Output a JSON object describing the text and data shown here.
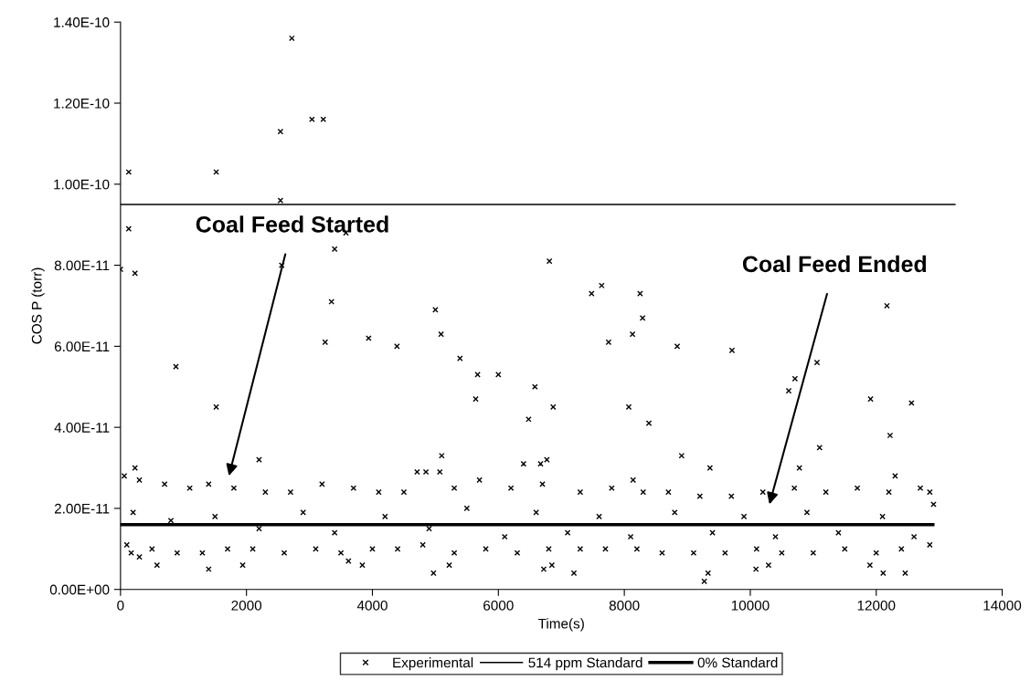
{
  "chart_data": {
    "type": "scatter",
    "xlabel": "Time(s)",
    "ylabel": "COS P (torr)",
    "xlim": [
      0,
      14000
    ],
    "xticks": [
      0,
      2000,
      4000,
      6000,
      8000,
      10000,
      12000,
      14000
    ],
    "ylim": [
      0,
      1.4e-10
    ],
    "yticks": [
      {
        "value": 0,
        "label": "0.00E+00"
      },
      {
        "value": 2e-11,
        "label": "2.00E-11"
      },
      {
        "value": 4e-11,
        "label": "4.00E-11"
      },
      {
        "value": 6e-11,
        "label": "6.00E-11"
      },
      {
        "value": 8e-11,
        "label": "8.00E-11"
      },
      {
        "value": 1e-10,
        "label": "1.00E-10"
      },
      {
        "value": 1.2e-10,
        "label": "1.20E-10"
      },
      {
        "value": 1.4e-10,
        "label": "1.40E-10"
      }
    ],
    "grid": false,
    "legend": "bottom",
    "annotations": [
      "Coal Feed Started",
      "Coal Feed Ended"
    ],
    "series": [
      {
        "name": "Experimental",
        "color": "#000000",
        "marker": "cross",
        "x": [
          2720,
          3040,
          3220,
          2540,
          130,
          1520,
          2540,
          130,
          3580,
          3400,
          2560,
          0,
          230,
          3350,
          5000,
          5090,
          3250,
          3940,
          4390,
          5390,
          5670,
          6000,
          880,
          5640,
          1520,
          6810,
          7480,
          7640,
          8250,
          8290,
          8130,
          7750,
          8840,
          9710,
          11060,
          10710,
          10610,
          12170,
          11910,
          12560,
          12220,
          6580,
          6870,
          6480,
          8070,
          8390,
          11100,
          8910,
          9360,
          10780,
          12300,
          6400,
          6670,
          6770,
          8140,
          2200,
          5100,
          5070,
          4710,
          4850,
          230,
          1400,
          4970,
          1940,
          5220,
          6720,
          580,
          300,
          170,
          3620,
          3840,
          9270,
          9330,
          12110,
          12460,
          10090,
          10290,
          7200,
          6850,
          11900,
          12850,
          12910,
          60,
          300,
          700,
          1100,
          1400,
          1800,
          2300,
          2700,
          3200,
          3700,
          4100,
          4500,
          5300,
          5700,
          6200,
          6700,
          7300,
          7800,
          8300,
          8700,
          9200,
          9700,
          10200,
          10700,
          11200,
          11700,
          12200,
          12700,
          100,
          500,
          900,
          1300,
          1700,
          2100,
          2600,
          3100,
          3500,
          4000,
          4400,
          4800,
          5300,
          5800,
          6300,
          6800,
          7300,
          7700,
          8200,
          8600,
          9100,
          9600,
          10100,
          10500,
          11000,
          11500,
          12000,
          12400,
          12850,
          200,
          800,
          1500,
          2200,
          2900,
          3400,
          4200,
          4900,
          5500,
          6100,
          6600,
          7100,
          7600,
          8100,
          8800,
          9400,
          9900,
          10400,
          10900,
          11400,
          12100,
          12600
        ],
        "values": [
          1.36e-10,
          1.16e-10,
          1.16e-10,
          1.13e-10,
          1.03e-10,
          1.03e-10,
          9.6e-11,
          8.9e-11,
          8.8e-11,
          8.4e-11,
          8e-11,
          7.9e-11,
          7.8e-11,
          7.1e-11,
          6.9e-11,
          6.3e-11,
          6.1e-11,
          6.2e-11,
          6e-11,
          5.7e-11,
          5.3e-11,
          5.3e-11,
          5.5e-11,
          4.7e-11,
          4.5e-11,
          8.1e-11,
          7.3e-11,
          7.5e-11,
          7.3e-11,
          6.7e-11,
          6.3e-11,
          6.1e-11,
          6e-11,
          5.9e-11,
          5.6e-11,
          5.2e-11,
          4.9e-11,
          7e-11,
          4.7e-11,
          4.6e-11,
          3.8e-11,
          5e-11,
          4.5e-11,
          4.2e-11,
          4.5e-11,
          4.1e-11,
          3.5e-11,
          3.3e-11,
          3e-11,
          3e-11,
          2.8e-11,
          3.1e-11,
          3.1e-11,
          3.2e-11,
          2.7e-11,
          3.2e-11,
          3.3e-11,
          2.9e-11,
          2.9e-11,
          2.9e-11,
          3e-11,
          5e-12,
          4e-12,
          6e-12,
          6e-12,
          5e-12,
          6e-12,
          8e-12,
          9e-12,
          7e-12,
          6e-12,
          2e-12,
          4e-12,
          4e-12,
          4e-12,
          5e-12,
          6e-12,
          4e-12,
          6e-12,
          6e-12,
          2.4e-11,
          2.1e-11,
          2.8e-11,
          2.7e-11,
          2.6e-11,
          2.5e-11,
          2.6e-11,
          2.5e-11,
          2.4e-11,
          2.4e-11,
          2.6e-11,
          2.5e-11,
          2.4e-11,
          2.4e-11,
          2.5e-11,
          2.7e-11,
          2.5e-11,
          2.6e-11,
          2.4e-11,
          2.5e-11,
          2.4e-11,
          2.4e-11,
          2.3e-11,
          2.3e-11,
          2.4e-11,
          2.5e-11,
          2.4e-11,
          2.5e-11,
          2.4e-11,
          2.5e-11,
          1.1e-11,
          1e-11,
          9e-12,
          9e-12,
          1e-11,
          1e-11,
          9e-12,
          1e-11,
          9e-12,
          1e-11,
          1e-11,
          1.1e-11,
          9e-12,
          1e-11,
          9e-12,
          1e-11,
          1e-11,
          1e-11,
          1e-11,
          9e-12,
          9e-12,
          9e-12,
          1e-11,
          9e-12,
          9e-12,
          1e-11,
          9e-12,
          1e-11,
          1.1e-11,
          1.9e-11,
          1.7e-11,
          1.8e-11,
          1.5e-11,
          1.9e-11,
          1.4e-11,
          1.8e-11,
          1.5e-11,
          2e-11,
          1.3e-11,
          1.9e-11,
          1.4e-11,
          1.8e-11,
          1.3e-11,
          1.9e-11,
          1.4e-11,
          1.8e-11,
          1.3e-11,
          1.9e-11,
          1.4e-11,
          1.8e-11,
          1.3e-11
        ]
      },
      {
        "name": "514 ppm Standard",
        "type": "line",
        "color": "#000000",
        "marker": "none",
        "line_style": "solid",
        "x": [
          0,
          13250
        ],
        "values": [
          9.5e-11,
          9.5e-11
        ]
      },
      {
        "name": "0% Standard",
        "type": "line",
        "color": "#000000",
        "marker": "none",
        "line_style": "solid",
        "x": [
          0,
          12900
        ],
        "values": [
          1.6e-11,
          1.6e-11
        ]
      }
    ]
  }
}
